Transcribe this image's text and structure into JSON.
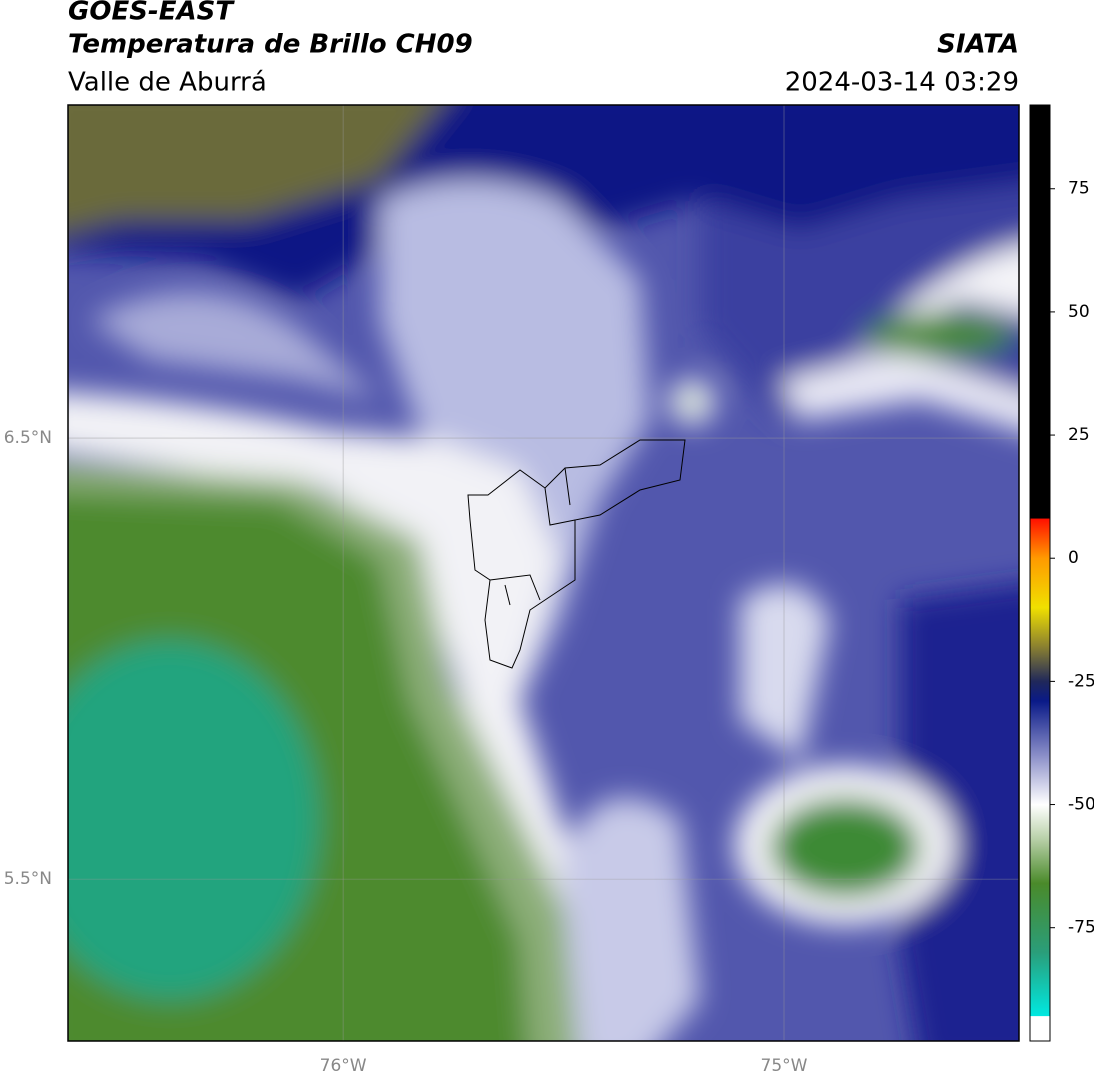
{
  "header": {
    "title": "GOES-EAST",
    "subtitle": "Temperatura de Brillo CH09",
    "region": "Valle de Aburrá",
    "source": "SIATA",
    "timestamp": "2024-03-14 03:29"
  },
  "map": {
    "xlim": [
      -76.624,
      -74.467
    ],
    "ylim": [
      5.133,
      7.255
    ],
    "xticks": [
      {
        "value": -76,
        "label": "76°W"
      },
      {
        "value": -75,
        "label": "75°W"
      }
    ],
    "yticks": [
      {
        "value": 6.5,
        "label": "6.5°N"
      },
      {
        "value": 5.5,
        "label": "5.5°N"
      }
    ],
    "grid": true
  },
  "colorbar": {
    "lim": [
      -98,
      92
    ],
    "ticks": [
      75,
      50,
      25,
      0,
      -25,
      -50,
      -75
    ],
    "colormap": [
      {
        "value": -98,
        "color": "#ffffff"
      },
      {
        "value": -93,
        "color": "#ffffff"
      },
      {
        "value": -92.9,
        "color": "#00e8e0"
      },
      {
        "value": -80,
        "color": "#2a9e7a"
      },
      {
        "value": -66,
        "color": "#4a8a2a"
      },
      {
        "value": -57,
        "color": "#b8d0a8"
      },
      {
        "value": -50,
        "color": "#ffffff"
      },
      {
        "value": -40,
        "color": "#8a8ec8"
      },
      {
        "value": -29,
        "color": "#0a1a88"
      },
      {
        "value": -25,
        "color": "#20285a"
      },
      {
        "value": -18,
        "color": "#8a8030"
      },
      {
        "value": -10,
        "color": "#f0e000"
      },
      {
        "value": 0,
        "color": "#ff9a00"
      },
      {
        "value": 8,
        "color": "#ff1000"
      },
      {
        "value": 8.1,
        "color": "#000000"
      },
      {
        "value": 92,
        "color": "#000000"
      }
    ]
  }
}
